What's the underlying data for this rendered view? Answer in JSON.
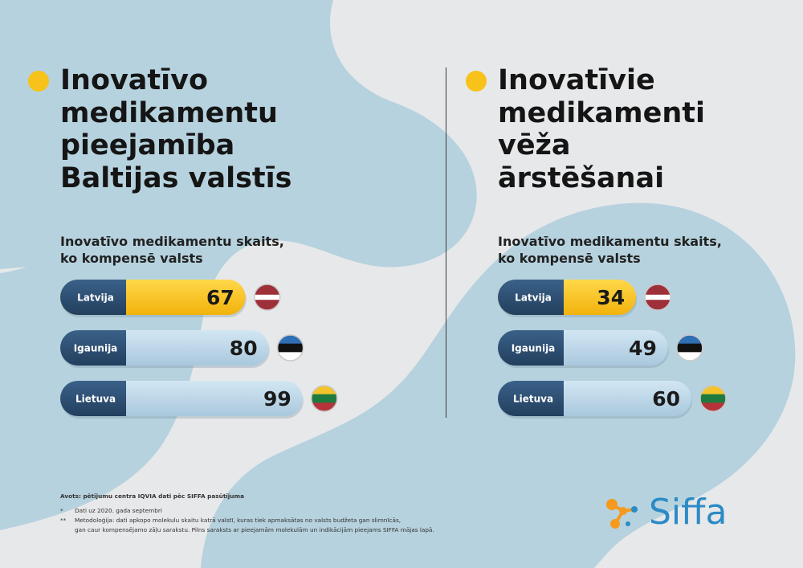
{
  "colors": {
    "background": "#e7e8ea",
    "blob": "#b6d2de",
    "accent_yellow": "#f7c21a",
    "label_cap": "#2d4f73",
    "bar_light": "#bcd6e8",
    "logo_blue": "#2b8bc6",
    "logo_orange": "#f59a1e"
  },
  "left": {
    "title_lines": [
      "Inovatīvo",
      "medikamentu",
      "pieejamība",
      "Baltijas valstīs"
    ],
    "subtitle_lines": [
      "Inovatīvo medikamentu skaits,",
      "ko kompensē valsts"
    ]
  },
  "right": {
    "title_lines": [
      "Inovatīvie",
      "medikamenti",
      "vēža",
      "ārstēšanai"
    ],
    "subtitle_lines": [
      "Inovatīvo medikamentu skaits,",
      "ko kompensē valsts"
    ]
  },
  "chart_data": [
    {
      "type": "bar",
      "orientation": "horizontal",
      "categories": [
        "Latvija",
        "Igaunija",
        "Lietuva"
      ],
      "values": [
        67,
        80,
        99
      ],
      "flags": [
        "latvia-flag-icon",
        "estonia-flag-icon",
        "lithuania-flag-icon"
      ],
      "highlight": "Latvija"
    },
    {
      "type": "bar",
      "orientation": "horizontal",
      "categories": [
        "Latvija",
        "Igaunija",
        "Lietuva"
      ],
      "values": [
        34,
        49,
        60
      ],
      "flags": [
        "latvia-flag-icon",
        "estonia-flag-icon",
        "lithuania-flag-icon"
      ],
      "highlight": "Latvija"
    }
  ],
  "footnotes": {
    "source": "Avots: pētījumu centra IQVIA dati pēc SIFFA pasūtījuma",
    "items": [
      {
        "mark": "*",
        "text": "Dati uz 2020. gada septembri"
      },
      {
        "mark": "**",
        "text": "Metodoloģija: dati apkopo molekulu skaitu katrā valstī, kuras tiek apmaksātas no valsts budžeta gan slimnīcās,"
      },
      {
        "mark": "",
        "text": "gan caur kompensējamo zāļu sarakstu. Pilns saraksts ar pieejamām molekulām un indikācijām pieejams SIFFA mājas lapā."
      }
    ]
  },
  "logo": {
    "text": "Siffa",
    "icon": "siffa-molecule-icon"
  }
}
